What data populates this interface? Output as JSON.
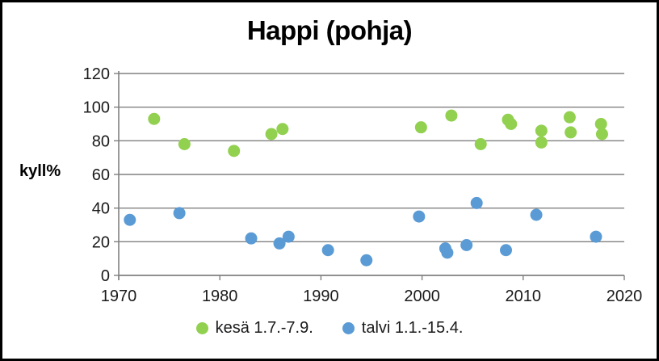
{
  "figure": {
    "background": "#ffffff",
    "border_color": "#000000"
  },
  "chart_data": {
    "type": "scatter",
    "title": "Happi (pohja)",
    "xlabel": "",
    "ylabel": "kyll%",
    "xlim": [
      1970,
      2020
    ],
    "ylim": [
      0,
      120
    ],
    "xticks": [
      1970,
      1980,
      1990,
      2000,
      2010,
      2020
    ],
    "yticks": [
      0,
      20,
      40,
      60,
      80,
      100,
      120
    ],
    "grid": "horizontal",
    "grid_color": "#808080",
    "axis_color": "#808080",
    "tick_label_color": "#1a1a1a",
    "legend_position": "bottom",
    "marker": "circle",
    "marker_radius": 7.5,
    "series": [
      {
        "name": "kesä 1.7.-7.9.",
        "color": "#92d050",
        "points": [
          [
            1973.5,
            93
          ],
          [
            1976.5,
            78
          ],
          [
            1981.4,
            74
          ],
          [
            1985.1,
            84
          ],
          [
            1986.2,
            87
          ],
          [
            1999.9,
            88
          ],
          [
            2002.9,
            95
          ],
          [
            2005.8,
            78
          ],
          [
            2008.5,
            92.5
          ],
          [
            2008.8,
            90
          ],
          [
            2011.8,
            86
          ],
          [
            2011.8,
            79
          ],
          [
            2014.6,
            94
          ],
          [
            2014.7,
            85
          ],
          [
            2017.7,
            90
          ],
          [
            2017.8,
            84
          ]
        ]
      },
      {
        "name": "talvi 1.1.-15.4.",
        "color": "#5b9bd5",
        "points": [
          [
            1971.1,
            33
          ],
          [
            1976.0,
            37
          ],
          [
            1983.1,
            22
          ],
          [
            1985.9,
            19
          ],
          [
            1986.8,
            23
          ],
          [
            1990.7,
            15
          ],
          [
            1994.5,
            9
          ],
          [
            1999.7,
            35
          ],
          [
            2002.3,
            16
          ],
          [
            2002.5,
            13.5
          ],
          [
            2004.4,
            18
          ],
          [
            2005.4,
            43
          ],
          [
            2008.3,
            15
          ],
          [
            2011.3,
            36
          ],
          [
            2017.2,
            23
          ]
        ]
      }
    ]
  }
}
